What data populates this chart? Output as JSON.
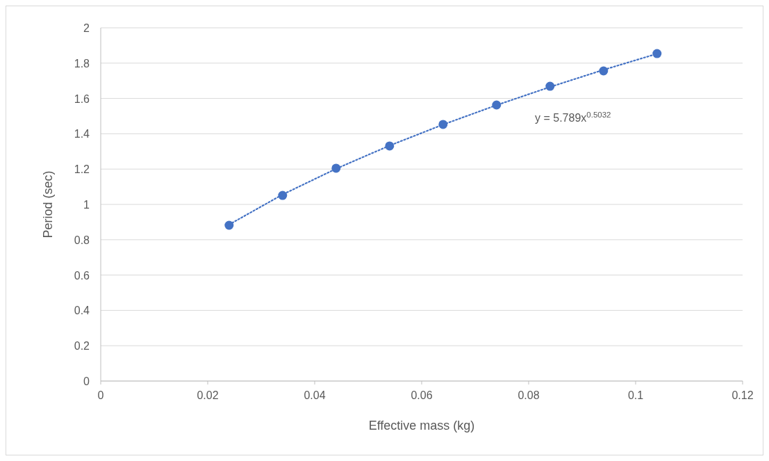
{
  "chart_data": {
    "type": "scatter",
    "xlabel": "Effective mass (kg)",
    "ylabel": "Period (sec)",
    "xlim": [
      0,
      0.12
    ],
    "xticks": [
      0,
      0.02,
      0.04,
      0.06,
      0.08,
      0.1,
      0.12
    ],
    "ylim": [
      0,
      2
    ],
    "yticks": [
      0,
      0.2,
      0.4,
      0.6,
      0.8,
      1,
      1.2,
      1.4,
      1.6,
      1.8,
      2
    ],
    "grid": "y",
    "marker": "circle",
    "series": [
      {
        "color": "#4472c4",
        "x": [
          0.024,
          0.034,
          0.044,
          0.054,
          0.064,
          0.074,
          0.084,
          0.094,
          0.104
        ],
        "values": [
          0.882,
          1.051,
          1.205,
          1.331,
          1.453,
          1.563,
          1.669,
          1.756,
          1.854
        ]
      },
      {
        "type": "line",
        "color": "#4472c4",
        "line_style": "dotted",
        "marker": "none",
        "x": [
          0.024,
          0.034,
          0.044,
          0.054,
          0.064,
          0.074,
          0.084,
          0.094,
          0.104
        ],
        "values": [
          0.886,
          1.056,
          1.202,
          1.333,
          1.452,
          1.562,
          1.665,
          1.762,
          1.853
        ]
      }
    ],
    "annotations": [
      "y = 5.789x$^{0.5032}$"
    ]
  }
}
